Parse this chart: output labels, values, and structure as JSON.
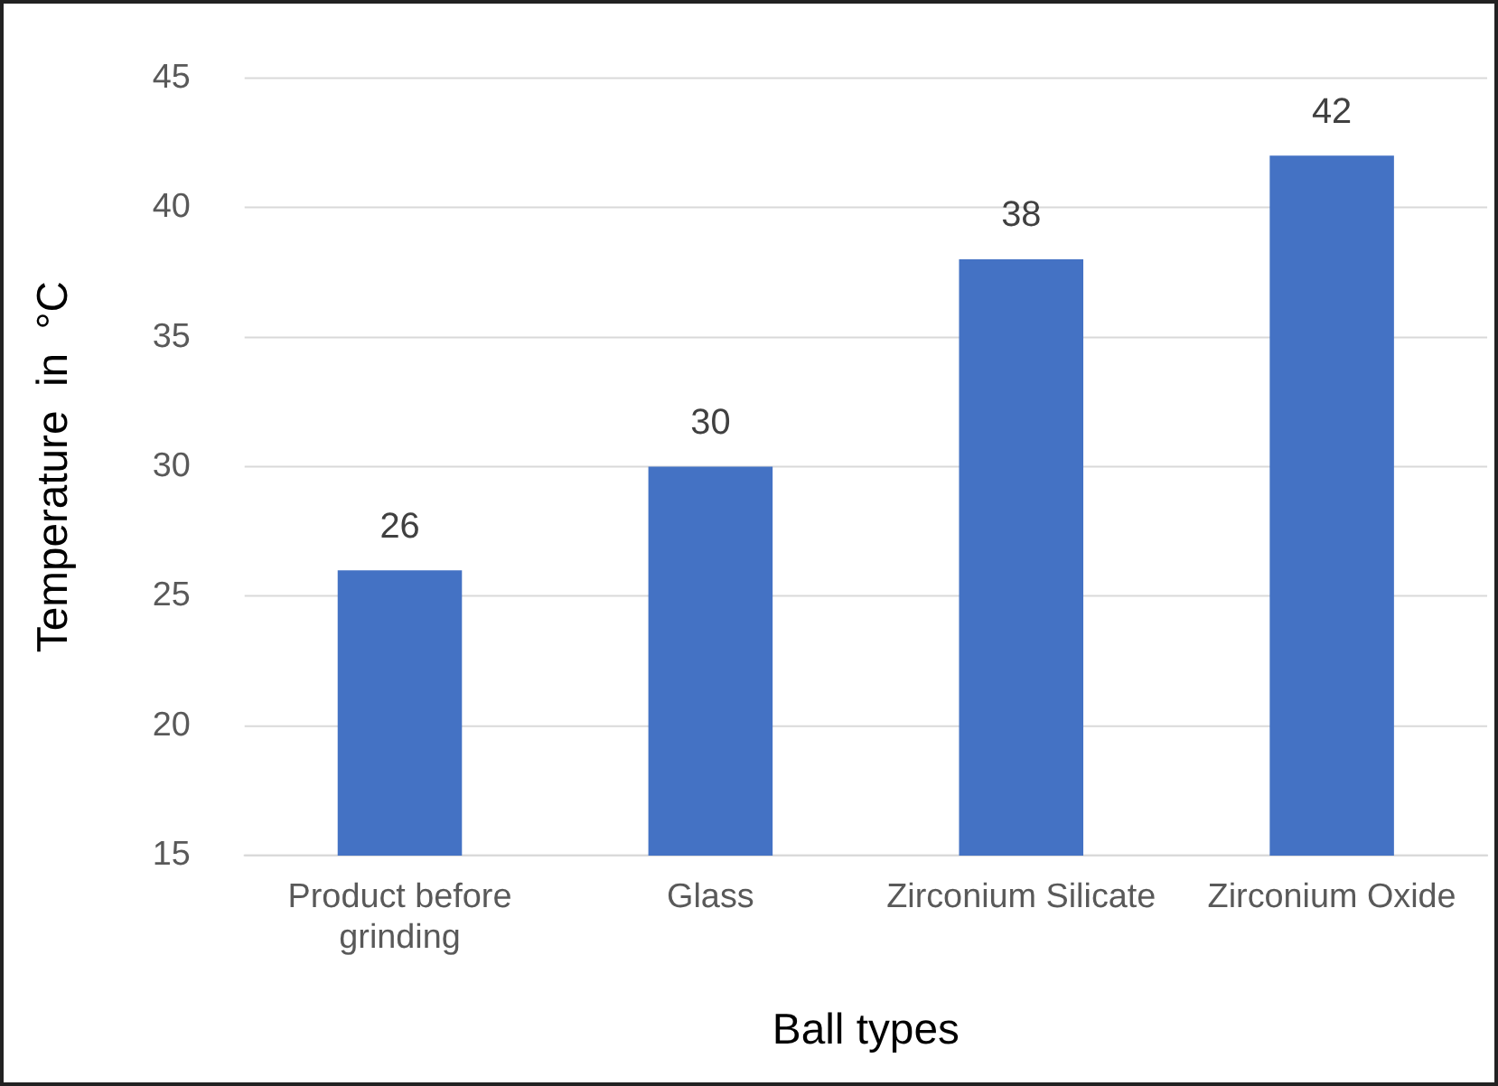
{
  "chart_data": {
    "type": "bar",
    "xlabel": "Ball types",
    "ylabel": "Temperature  in  °C",
    "categories": [
      "Product before grinding",
      "Glass",
      "Zirconium Silicate",
      "Zirconium Oxide"
    ],
    "values": [
      26,
      30,
      38,
      42
    ],
    "color": "#4472c4",
    "ylim": [
      15,
      45
    ],
    "yticks": [
      15,
      20,
      25,
      30,
      35,
      40,
      45
    ],
    "grid": "y",
    "data_labels": true,
    "legend": false
  }
}
